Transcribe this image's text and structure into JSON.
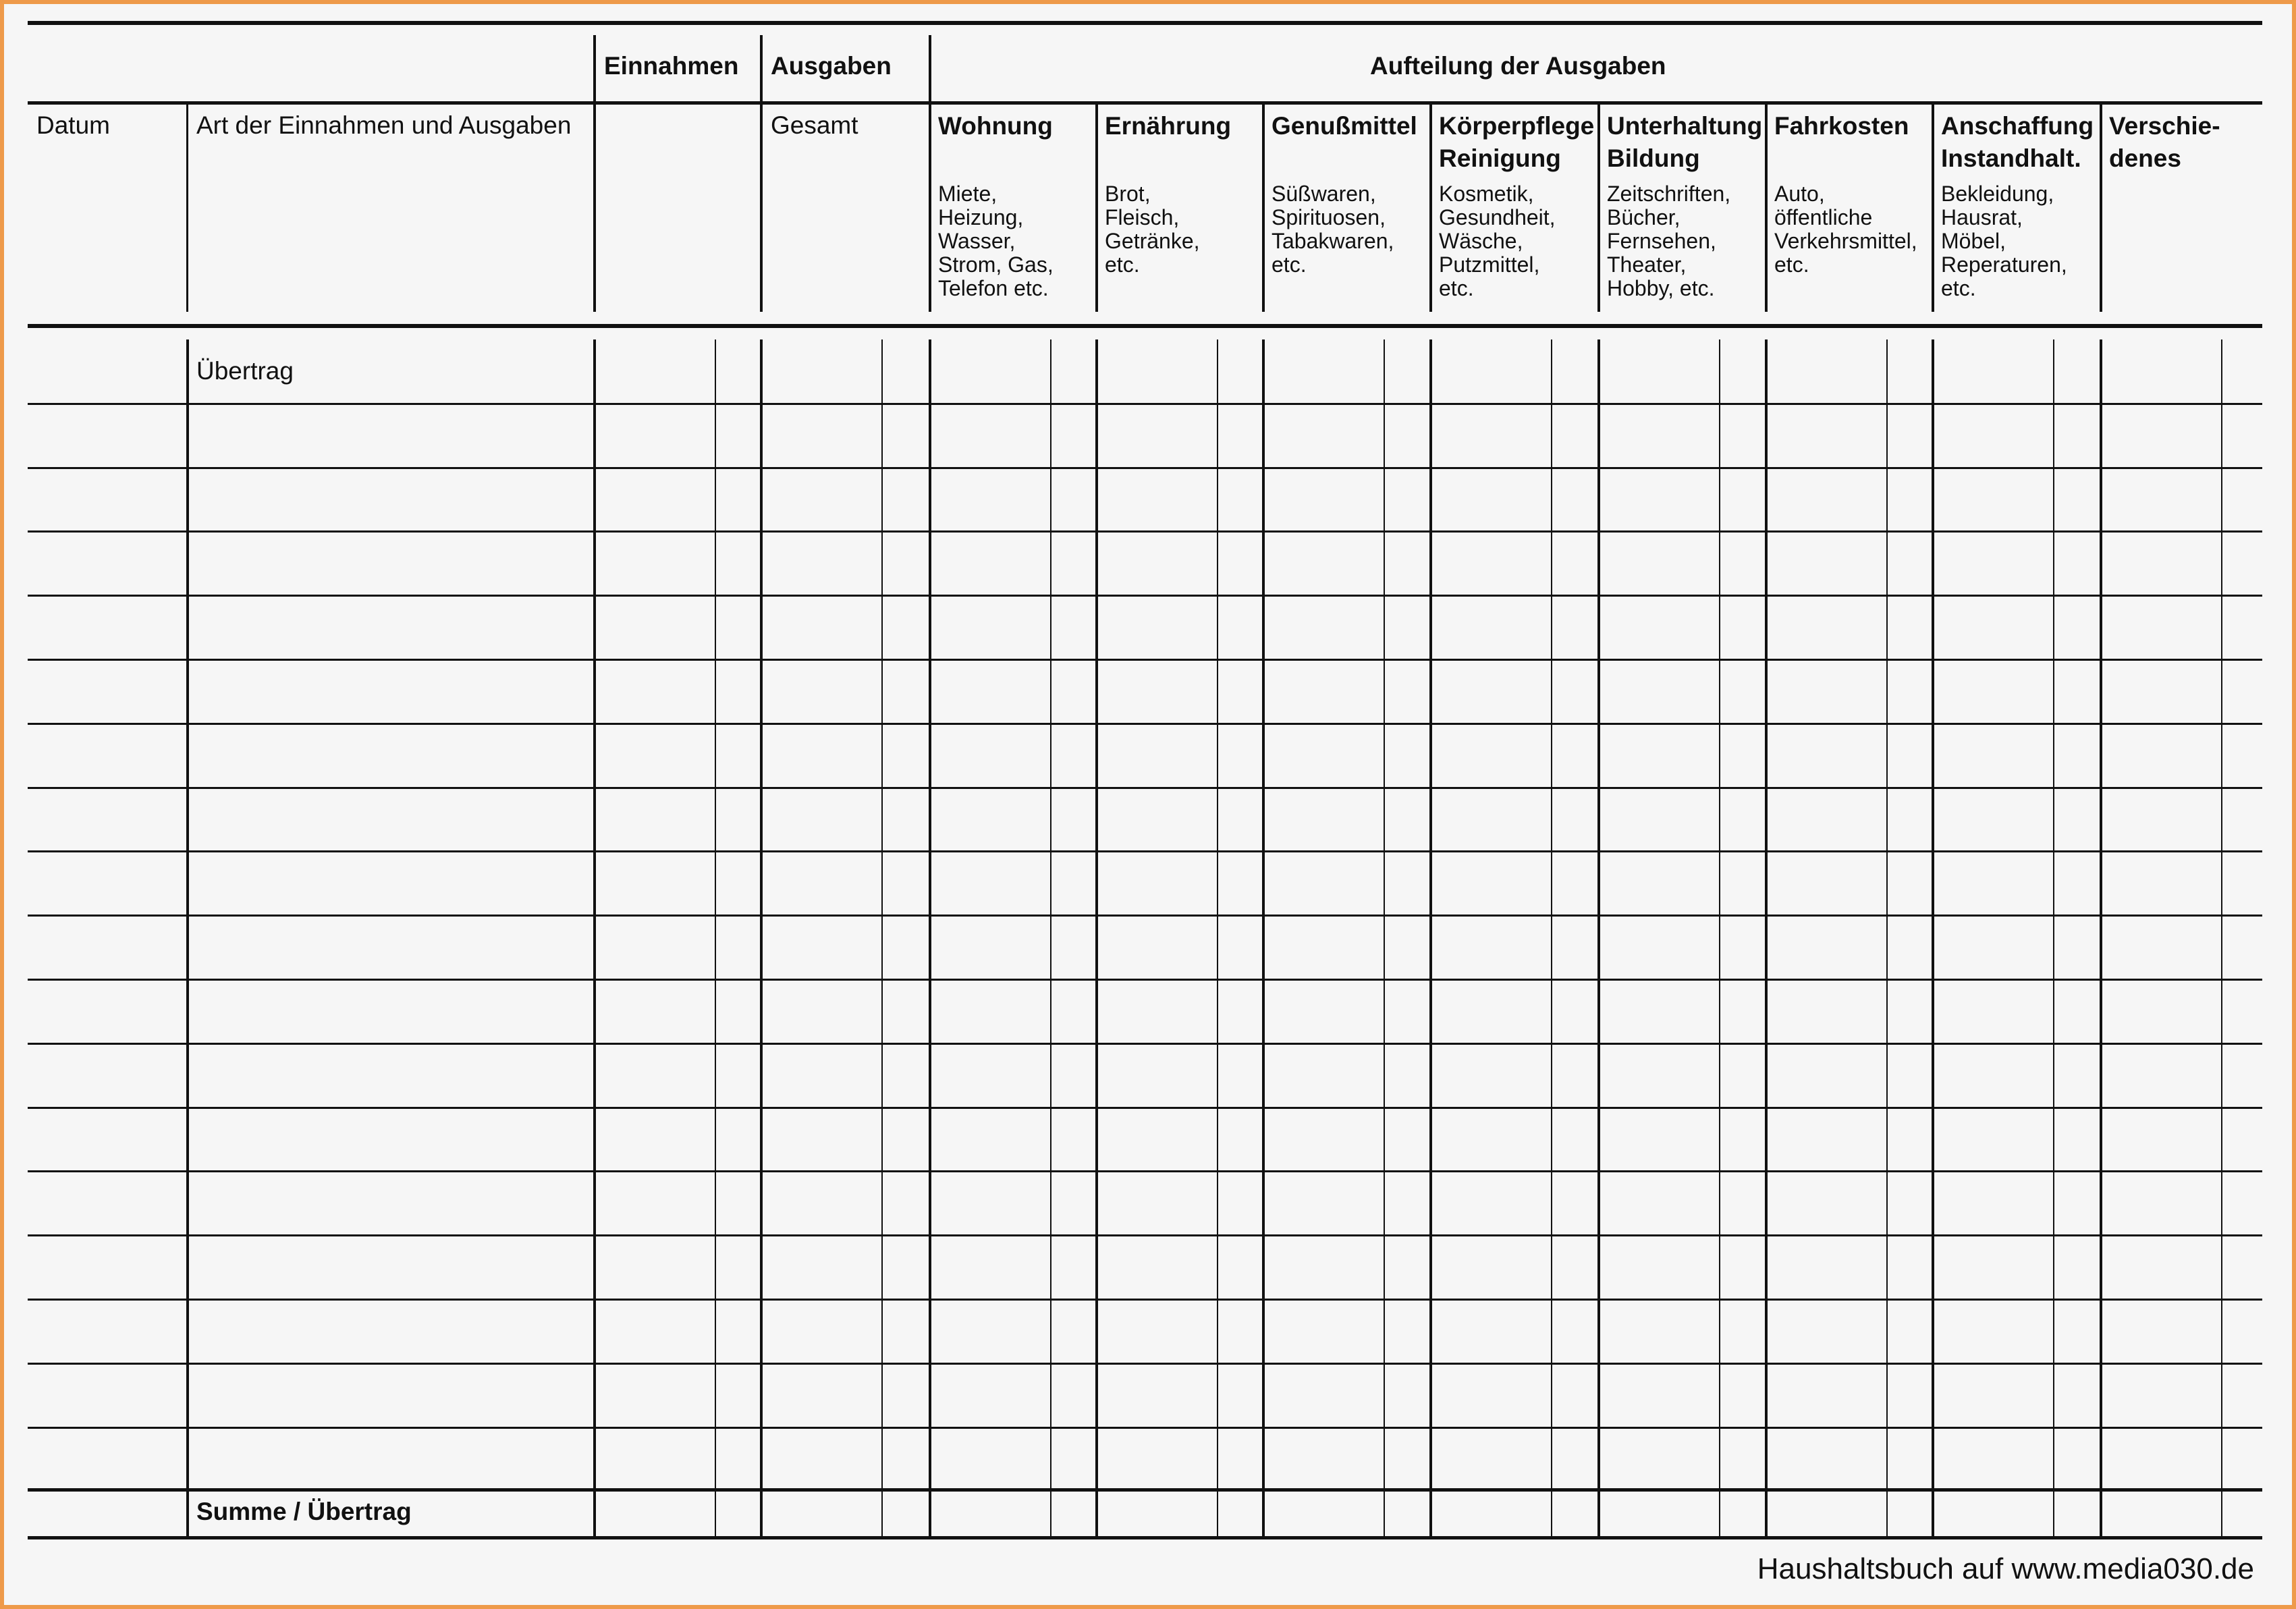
{
  "header": {
    "einnahmen": "Einnahmen",
    "ausgaben": "Ausgaben",
    "aufteilung": "Aufteilung der Ausgaben",
    "datum": "Datum",
    "art": "Art der Einnahmen und Ausgaben",
    "gesamt": "Gesamt"
  },
  "categories": [
    {
      "title": "Wohnung",
      "desc": "Miete,\nHeizung,\nWasser,\nStrom, Gas,\nTelefon etc."
    },
    {
      "title": "Ernährung",
      "desc": "Brot,\nFleisch,\nGetränke,\netc."
    },
    {
      "title": "Genußmittel",
      "desc": "Süßwaren,\nSpirituosen,\nTabakwaren,\netc."
    },
    {
      "title": "Körperpflege\nReinigung",
      "desc": "Kosmetik,\nGesundheit,\nWäsche,\nPutzmittel,\netc."
    },
    {
      "title": "Unterhaltung\nBildung",
      "desc": "Zeitschriften,\nBücher,\nFernsehen,\nTheater,\nHobby, etc."
    },
    {
      "title": "Fahrkosten",
      "desc": "Auto,\nöffentliche\nVerkehrsmittel,\netc."
    },
    {
      "title": "Anschaffung\nInstandhalt.",
      "desc": "Bekleidung,\nHausrat,\nMöbel,\nReperaturen,\netc."
    },
    {
      "title": "Verschie-\ndenes",
      "desc": ""
    }
  ],
  "rows": {
    "carry_in": "Übertrag",
    "blank_rows": 17,
    "total": "Summe / Übertrag"
  },
  "footer": "Haushaltsbuch auf www.media030.de",
  "colors": {
    "border": "#ee9a4a",
    "background": "#f6f6f6",
    "ink": "#111111"
  }
}
